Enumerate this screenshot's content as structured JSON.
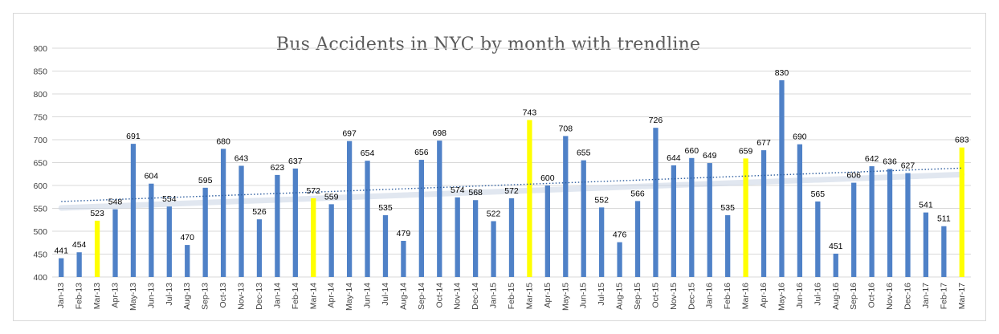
{
  "chart_data": {
    "type": "bar",
    "title": "Bus Accidents in NYC by month with trendline",
    "xlabel": "",
    "ylabel": "",
    "ylim": [
      400,
      900
    ],
    "yticks": [
      400,
      450,
      500,
      550,
      600,
      650,
      700,
      750,
      800,
      850,
      900
    ],
    "grid": true,
    "legend": "none",
    "categories": [
      "Jan-13",
      "Feb-13",
      "Mar-13",
      "Apr-13",
      "May-13",
      "Jun-13",
      "Jul-13",
      "Aug-13",
      "Sep-13",
      "Oct-13",
      "Nov-13",
      "Dec-13",
      "Jan-14",
      "Feb-14",
      "Mar-14",
      "Apr-14",
      "May-14",
      "Jun-14",
      "Jul-14",
      "Aug-14",
      "Sep-14",
      "Oct-14",
      "Nov-14",
      "Dec-14",
      "Jan-15",
      "Feb-15",
      "Mar-15",
      "Apr-15",
      "May-15",
      "Jun-15",
      "Jul-15",
      "Aug-15",
      "Sep-15",
      "Oct-15",
      "Nov-15",
      "Dec-15",
      "Jan-16",
      "Feb-16",
      "Mar-16",
      "Apr-16",
      "May-16",
      "Jun-16",
      "Jul-16",
      "Aug-16",
      "Sep-16",
      "Oct-16",
      "Nov-16",
      "Dec-16",
      "Jan-17",
      "Feb-17",
      "Mar-17"
    ],
    "values": [
      441,
      454,
      523,
      548,
      691,
      604,
      554,
      470,
      595,
      680,
      643,
      526,
      623,
      637,
      572,
      559,
      697,
      654,
      535,
      479,
      656,
      698,
      574,
      568,
      522,
      572,
      743,
      600,
      708,
      655,
      552,
      476,
      566,
      726,
      644,
      660,
      649,
      535,
      659,
      677,
      830,
      690,
      565,
      451,
      606,
      642,
      636,
      627,
      541,
      511,
      683
    ],
    "highlighted": [
      "Mar-13",
      "Mar-14",
      "Mar-15",
      "Mar-16",
      "Mar-17"
    ],
    "trendline": {
      "type": "linear",
      "style": "dotted",
      "start_value": 565,
      "end_value": 638
    },
    "colors": {
      "bar": "#4f81c7",
      "highlight": "#ffff00",
      "trendline": "#2e5e9f",
      "grid": "#d9d9d9",
      "axis_text": "#404040",
      "title": "#595959"
    }
  }
}
